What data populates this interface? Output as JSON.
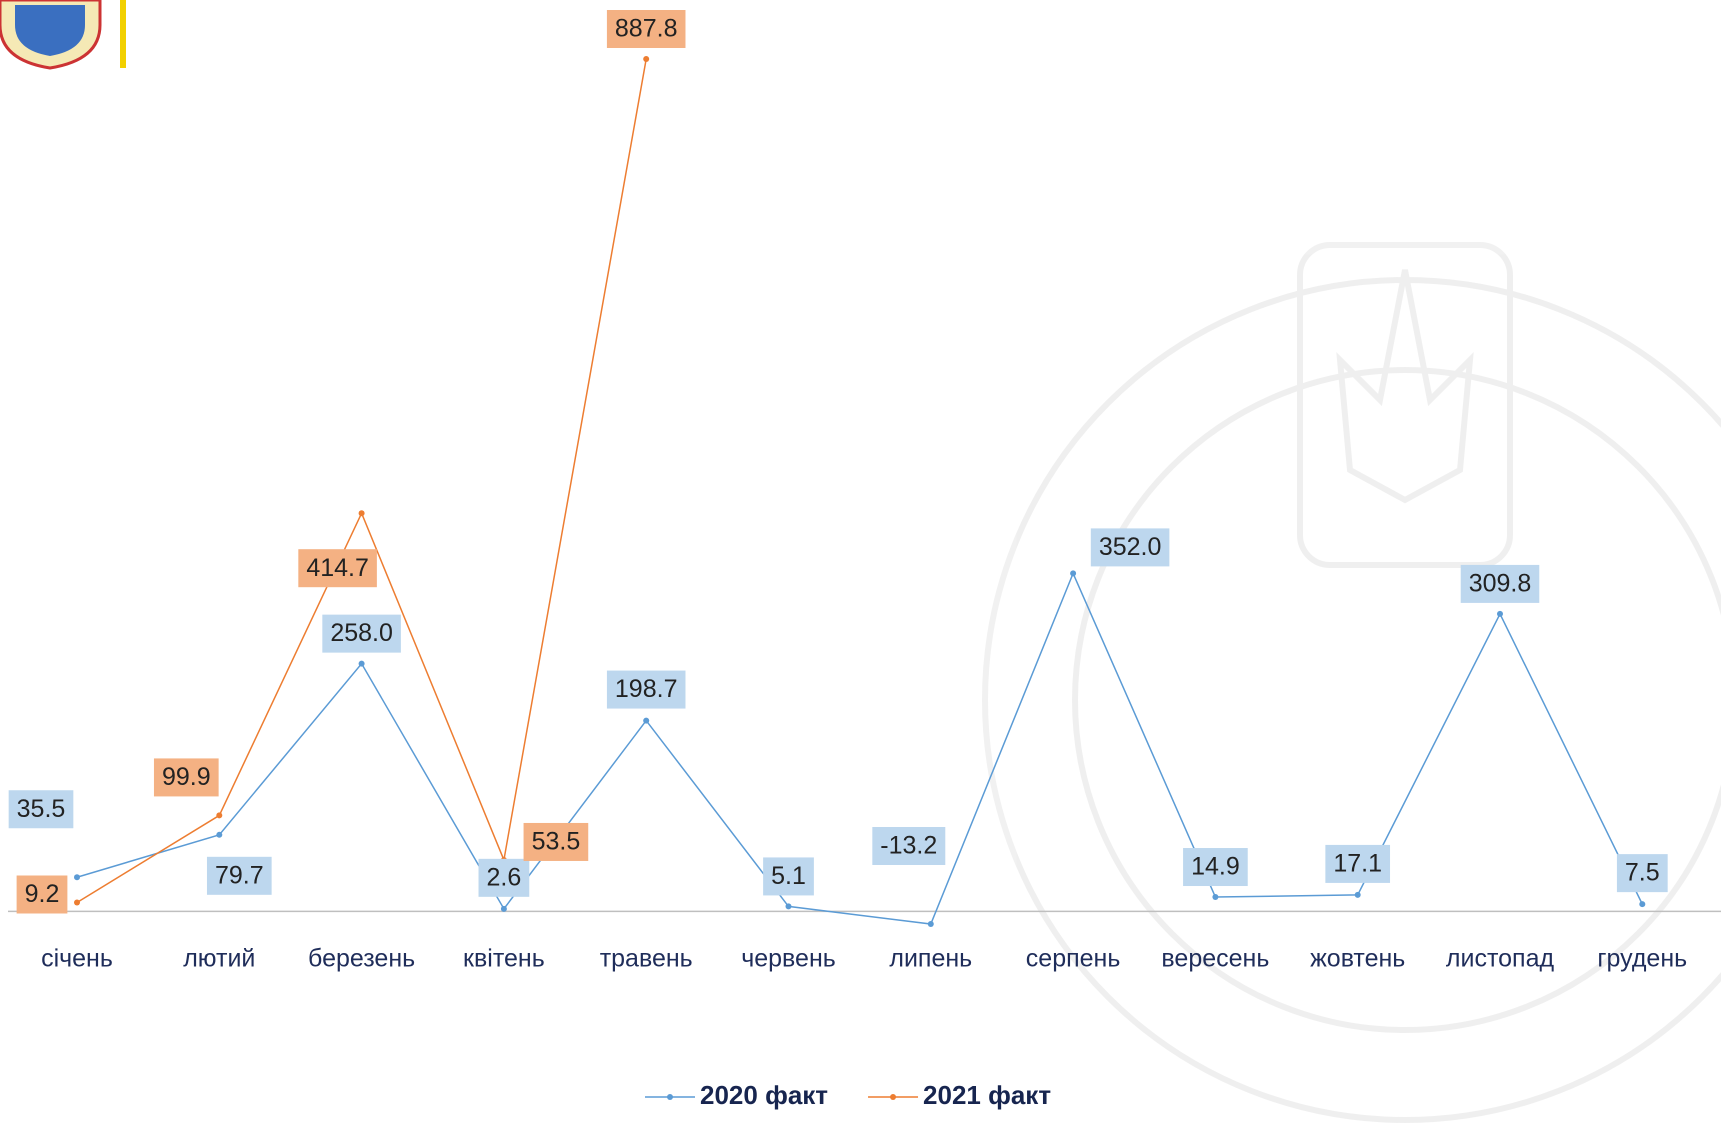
{
  "chart_data": {
    "type": "line",
    "categories": [
      "січень",
      "лютий",
      "березень",
      "квітень",
      "травень",
      "червень",
      "липень",
      "серпень",
      "вересень",
      "жовтень",
      "листопад",
      "грудень"
    ],
    "series": [
      {
        "name": "2020 факт",
        "color": "#5b9bd5",
        "label_color": "#bdd7ee",
        "values": [
          35.5,
          79.7,
          258.0,
          2.6,
          198.7,
          5.1,
          -13.2,
          352.0,
          14.9,
          17.1,
          309.8,
          7.5
        ],
        "value_labels": [
          "35.5",
          "79.7",
          "258.0",
          "2.6",
          "198.7",
          "5.1",
          "-13.2",
          "352.0",
          "14.9",
          "17.1",
          "309.8",
          "7.5"
        ]
      },
      {
        "name": "2021 факт",
        "color": "#ed7d31",
        "label_color": "#f4b183",
        "values": [
          9.2,
          99.9,
          414.7,
          53.5,
          887.8,
          null,
          null,
          null,
          null,
          null,
          null,
          null
        ],
        "value_labels": [
          "9.2",
          "99.9",
          "414.7",
          "53.5",
          "887.8",
          null,
          null,
          null,
          null,
          null,
          null,
          null
        ]
      }
    ],
    "legend": "bottom"
  }
}
